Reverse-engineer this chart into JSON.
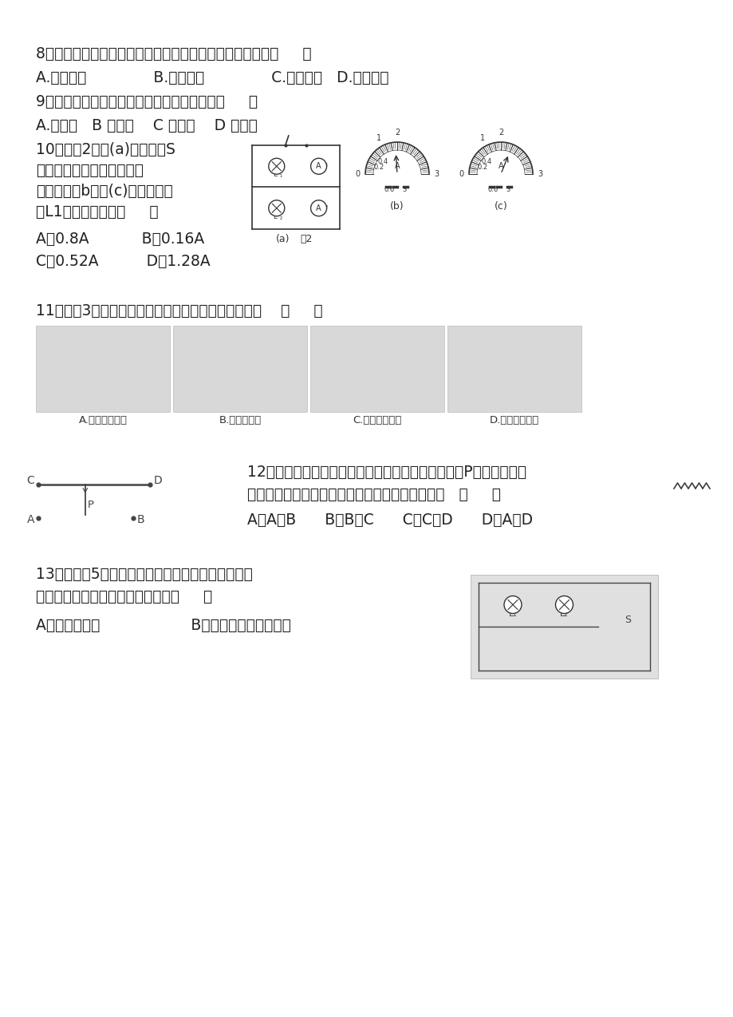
{
  "bg_color": "#ffffff",
  "text_color": "#222222",
  "q8_line1": "8、汽油机工作的四个冲程中，将内能转化为机械能的是：（     ）",
  "q8_line2": "A.吸气冲程              B.压缩冲程              C.做功冲程   D.排气冲程",
  "q9_line1": "9、在下列仪器中，能检验物体是否带电的是（     ）",
  "q9_line2": "A.电压表   B 电流表    C 电能表    D 验电器",
  "q10_line1": "10、如图2所示(a)，当开关S",
  "q10_line2": "闭合时，两只电流表的示数",
  "q10_line3": "分别由图（b）、(c)读得，则电",
  "q10_line4": "灯L1中的电流是：（     ）",
  "q10_line5": "A、0.8A           B〖0.16A",
  "q10_line6": "C〖0.52A          D〖1.28A",
  "q11_line1": "11、如图3所示的四种做法中，符合安全用电要求的是    （     ）",
  "q11_img_labels": [
    "A.电线上晶衣服",
    "B.湿手按开关",
    "C.湿毛巾擦灯泡",
    "D.测电笔的使用"
  ],
  "q12_line1": "12、滑动变阔器的两个接线柱接到电路中，要求滑片P向右移动时，",
  "q12_line2": "接入电路中的电阔逐渐变小，连入电路的接线柱是   （     ）",
  "q12_line3": "A、A和B      B、B和C      C、C和D      D、A和D",
  "q13_line1": "13、在如图5所示的电路中，闭合开关，一灯较亮，",
  "q13_line2": "一灯较暗，则下列说法正确的是：（     ）",
  "q13_line3": "A、电流一样大                   B、较暗的灯中电流较大"
}
